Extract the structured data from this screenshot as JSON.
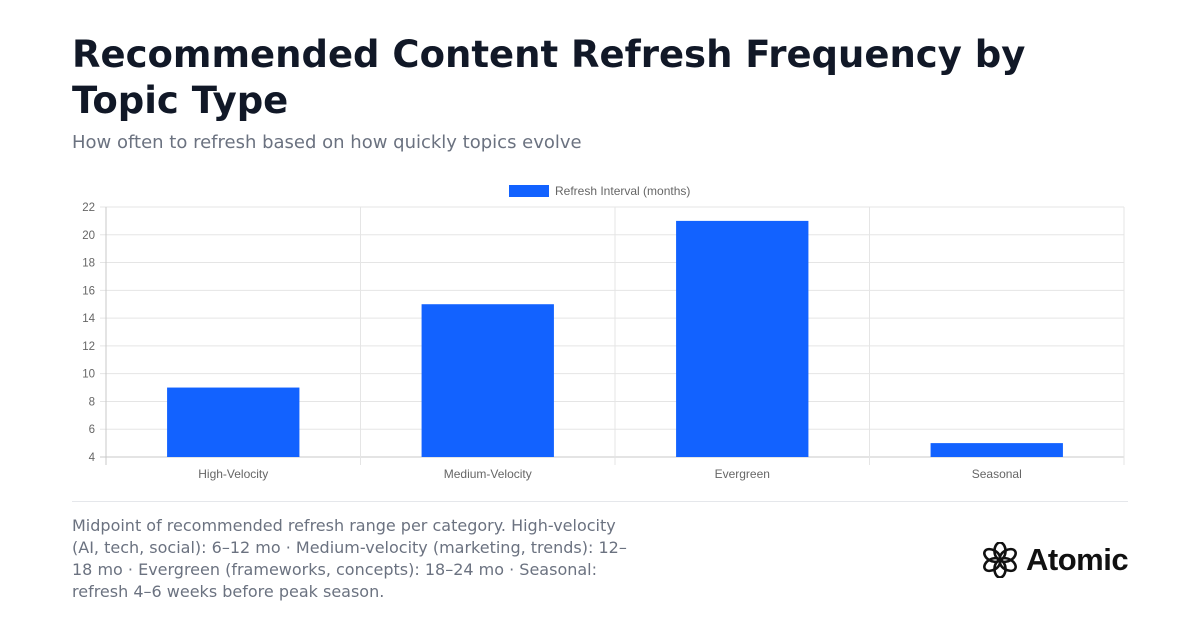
{
  "header": {
    "title": "Recommended Content Refresh Frequency by Topic Type",
    "subtitle": "How often to refresh based on how quickly topics evolve"
  },
  "chart_data": {
    "type": "bar",
    "categories": [
      "High-Velocity",
      "Medium-Velocity",
      "Evergreen",
      "Seasonal"
    ],
    "series": [
      {
        "name": "Refresh Interval (months)",
        "values": [
          9,
          15,
          21,
          5
        ],
        "color": "#1262ff"
      }
    ],
    "ylim": [
      4,
      22
    ],
    "yticks": [
      4,
      6,
      8,
      10,
      12,
      14,
      16,
      18,
      20,
      22
    ],
    "grid": true,
    "legend": "top-center"
  },
  "footer": {
    "note": "Midpoint of recommended refresh range per category. High-velocity (AI, tech, social): 6–12 mo · Medium-velocity (marketing, trends): 12–18 mo · Evergreen (frameworks, concepts): 18–24 mo · Seasonal: refresh 4–6 weeks before peak season.",
    "brand": "Atomic",
    "brand_icon": "atom-flower-icon"
  }
}
